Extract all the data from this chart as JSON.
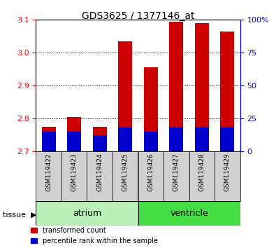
{
  "title": "GDS3625 / 1377146_at",
  "samples": [
    "GSM119422",
    "GSM119423",
    "GSM119424",
    "GSM119425",
    "GSM119426",
    "GSM119427",
    "GSM119428",
    "GSM119429"
  ],
  "tissue_groups": [
    {
      "name": "atrium",
      "indices": [
        0,
        1,
        2,
        3
      ],
      "color": "#b8f0b8"
    },
    {
      "name": "ventricle",
      "indices": [
        4,
        5,
        6,
        7
      ],
      "color": "#44dd44"
    }
  ],
  "transformed_count": [
    2.775,
    2.805,
    2.775,
    3.035,
    2.955,
    3.095,
    3.09,
    3.065
  ],
  "percentile_values": [
    15,
    15,
    12,
    18,
    15,
    18,
    18,
    18
  ],
  "ylim_left": [
    2.7,
    3.1
  ],
  "ylim_right": [
    0,
    100
  ],
  "yticks_left": [
    2.7,
    2.8,
    2.9,
    3.0,
    3.1
  ],
  "yticks_right": [
    0,
    25,
    50,
    75,
    100
  ],
  "bar_color_red": "#cc0000",
  "bar_color_blue": "#0000cc",
  "bar_width": 0.55,
  "legend_red": "transformed count",
  "legend_blue": "percentile rank within the sample",
  "tissue_label": "tissue"
}
